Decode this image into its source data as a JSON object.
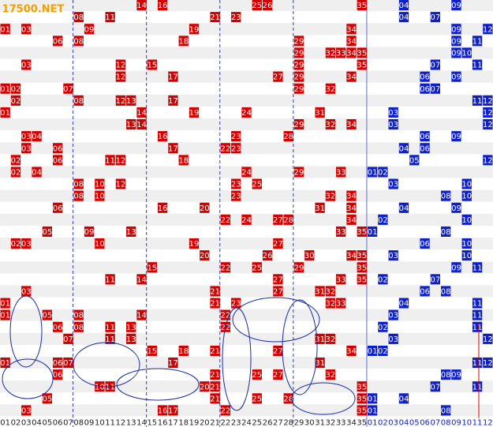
{
  "logo": "17500.NET",
  "rows": [
    {
      "red": [
        "14",
        "16",
        "25",
        "26",
        "35"
      ],
      "blue": [
        "04",
        "09"
      ]
    },
    {
      "red": [
        "08",
        "11",
        "21",
        "23"
      ],
      "blue": [
        "04",
        "07"
      ]
    },
    {
      "red": [
        "01",
        "03",
        "09",
        "19",
        "34"
      ],
      "blue": [
        "09",
        "12"
      ]
    },
    {
      "red": [
        "06",
        "08",
        "18",
        "29",
        "34"
      ],
      "blue": [
        "09",
        "11"
      ]
    },
    {
      "red": [
        "29",
        "32",
        "33",
        "34",
        "35"
      ],
      "blue": [
        "09",
        "10"
      ]
    },
    {
      "red": [
        "03",
        "12",
        "15",
        "29",
        "35"
      ],
      "blue": [
        "07",
        "11"
      ]
    },
    {
      "red": [
        "12",
        "17",
        "27",
        "29",
        "34"
      ],
      "blue": [
        "06",
        "09"
      ]
    },
    {
      "red": [
        "01",
        "02",
        "07",
        "29",
        "32"
      ],
      "blue": [
        "06",
        "07"
      ]
    },
    {
      "red": [
        "02",
        "08",
        "12",
        "13",
        "17"
      ],
      "blue": [
        "11",
        "12"
      ]
    },
    {
      "red": [
        "01",
        "14",
        "19",
        "24",
        "31"
      ],
      "blue": [
        "03",
        "12"
      ]
    },
    {
      "red": [
        "13",
        "14",
        "29",
        "32",
        "34"
      ],
      "blue": [
        "03",
        "12"
      ]
    },
    {
      "red": [
        "03",
        "04",
        "16",
        "23",
        "28"
      ],
      "blue": [
        "06",
        "09"
      ]
    },
    {
      "red": [
        "03",
        "06",
        "17",
        "22",
        "23"
      ],
      "blue": [
        "04",
        "06"
      ]
    },
    {
      "red": [
        "02",
        "06",
        "11",
        "12",
        "18"
      ],
      "blue": [
        "05",
        "12"
      ]
    },
    {
      "red": [
        "02",
        "04",
        "24",
        "29",
        "33"
      ],
      "blue": [
        "01",
        "02"
      ]
    },
    {
      "red": [
        "08",
        "10",
        "12",
        "23",
        "25"
      ],
      "blue": [
        "03",
        "10"
      ]
    },
    {
      "red": [
        "08",
        "10",
        "23",
        "32",
        "34"
      ],
      "blue": [
        "08",
        "10"
      ]
    },
    {
      "red": [
        "06",
        "16",
        "20",
        "31",
        "34"
      ],
      "blue": [
        "04",
        "09"
      ]
    },
    {
      "red": [
        "22",
        "24",
        "27",
        "28",
        "34"
      ],
      "blue": [
        "02",
        "10"
      ]
    },
    {
      "red": [
        "05",
        "09",
        "13",
        "33",
        "35"
      ],
      "blue": [
        "01",
        "08"
      ]
    },
    {
      "red": [
        "02",
        "03",
        "10",
        "19",
        "27"
      ],
      "blue": [
        "06",
        "10"
      ]
    },
    {
      "red": [
        "20",
        "26",
        "30",
        "34",
        "35"
      ],
      "blue": [
        "03",
        "10"
      ]
    },
    {
      "red": [
        "15",
        "22",
        "25",
        "29",
        "35"
      ],
      "blue": [
        "09",
        "11"
      ]
    },
    {
      "red": [
        "11",
        "14",
        "27",
        "33",
        "35"
      ],
      "blue": [
        "02",
        "07"
      ]
    },
    {
      "red": [
        "03",
        "21",
        "27",
        "31",
        "32"
      ],
      "blue": [
        "06",
        "08"
      ]
    },
    {
      "red": [
        "01",
        "21",
        "23",
        "32",
        "33"
      ],
      "blue": [
        "04",
        "11"
      ]
    },
    {
      "red": [
        "01",
        "05",
        "08",
        "14",
        "22"
      ],
      "blue": [
        "03",
        "11"
      ]
    },
    {
      "red": [
        "06",
        "08",
        "11",
        "13",
        "22"
      ],
      "blue": [
        "02",
        "11"
      ]
    },
    {
      "red": [
        "07",
        "11",
        "13",
        "31",
        "32"
      ],
      "blue": [
        "03",
        "12"
      ]
    },
    {
      "red": [
        "15",
        "18",
        "21",
        "27",
        "34"
      ],
      "blue": [
        "01",
        "02"
      ]
    },
    {
      "red": [
        "01",
        "06",
        "07",
        "17",
        "31"
      ],
      "blue": [
        "11",
        "12"
      ]
    },
    {
      "red": [
        "06",
        "21",
        "25",
        "27",
        "32"
      ],
      "blue": [
        "08",
        "09"
      ]
    },
    {
      "red": [
        "10",
        "11",
        "20",
        "21",
        "35"
      ],
      "blue": [
        "07",
        "11"
      ]
    },
    {
      "red": [
        "05",
        "21",
        "25",
        "28",
        "35"
      ],
      "blue": [
        "01",
        "04"
      ]
    },
    {
      "red": [
        "03",
        "16",
        "17",
        "22",
        "35"
      ],
      "blue": [
        "01",
        "08"
      ]
    }
  ],
  "header": {
    "red": [
      "01",
      "02",
      "03",
      "04",
      "05",
      "06",
      "07",
      "08",
      "09",
      "10",
      "11",
      "12",
      "13",
      "14",
      "15",
      "16",
      "17",
      "18",
      "19",
      "20",
      "21",
      "22",
      "23",
      "24",
      "25",
      "26",
      "27",
      "28",
      "29",
      "30",
      "31",
      "32",
      "33",
      "34",
      "35"
    ],
    "blue": [
      "01",
      "02",
      "03",
      "04",
      "05",
      "06",
      "07",
      "08",
      "09",
      "10",
      "11",
      "12"
    ]
  }
}
